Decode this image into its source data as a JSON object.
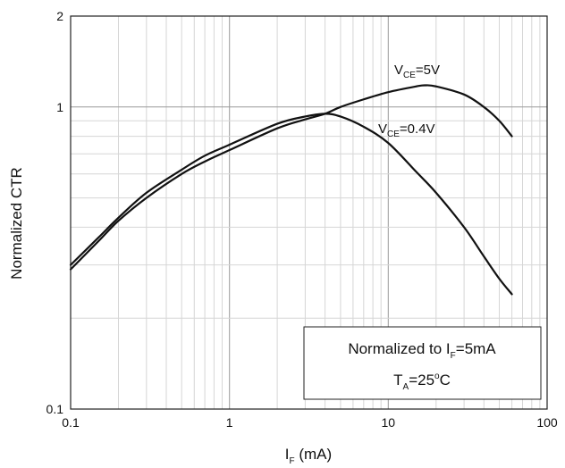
{
  "chart_data": {
    "type": "line",
    "xscale": "log",
    "yscale": "log",
    "xlim": [
      0.1,
      100
    ],
    "ylim": [
      0.1,
      2
    ],
    "xticks": [
      "0.1",
      "1",
      "10",
      "100"
    ],
    "yticks": [
      "0.1",
      "1",
      "2"
    ],
    "xlabel": {
      "main": "I",
      "sub": "F",
      "rest": " (mA)"
    },
    "ylabel": "Normalized CTR",
    "grid": true,
    "series": [
      {
        "name": {
          "main": "V",
          "sub": "CE",
          "rest": "=5V"
        },
        "x": [
          0.1,
          0.15,
          0.2,
          0.3,
          0.5,
          0.7,
          1,
          2,
          3,
          4,
          5,
          7,
          10,
          15,
          17,
          20,
          30,
          40,
          50,
          60
        ],
        "y": [
          0.29,
          0.36,
          0.42,
          0.5,
          0.6,
          0.66,
          0.72,
          0.85,
          0.91,
          0.95,
          1.0,
          1.06,
          1.12,
          1.17,
          1.18,
          1.17,
          1.1,
          1.0,
          0.9,
          0.8
        ]
      },
      {
        "name": {
          "main": "V",
          "sub": "CE",
          "rest": "=0.4V"
        },
        "x": [
          0.1,
          0.15,
          0.2,
          0.3,
          0.5,
          0.7,
          1,
          2,
          3,
          4,
          5,
          7,
          10,
          15,
          20,
          30,
          40,
          50,
          60
        ],
        "y": [
          0.3,
          0.37,
          0.43,
          0.52,
          0.62,
          0.69,
          0.75,
          0.88,
          0.93,
          0.95,
          0.93,
          0.86,
          0.76,
          0.61,
          0.52,
          0.4,
          0.32,
          0.27,
          0.24
        ]
      }
    ],
    "annotation": {
      "line1": {
        "pre": "Normalized to I",
        "sub": "F",
        "post": "=5mA"
      },
      "line2": {
        "pre": "T",
        "sub": "A",
        "mid": "=25",
        "sup": "o",
        "post": "C"
      }
    }
  }
}
